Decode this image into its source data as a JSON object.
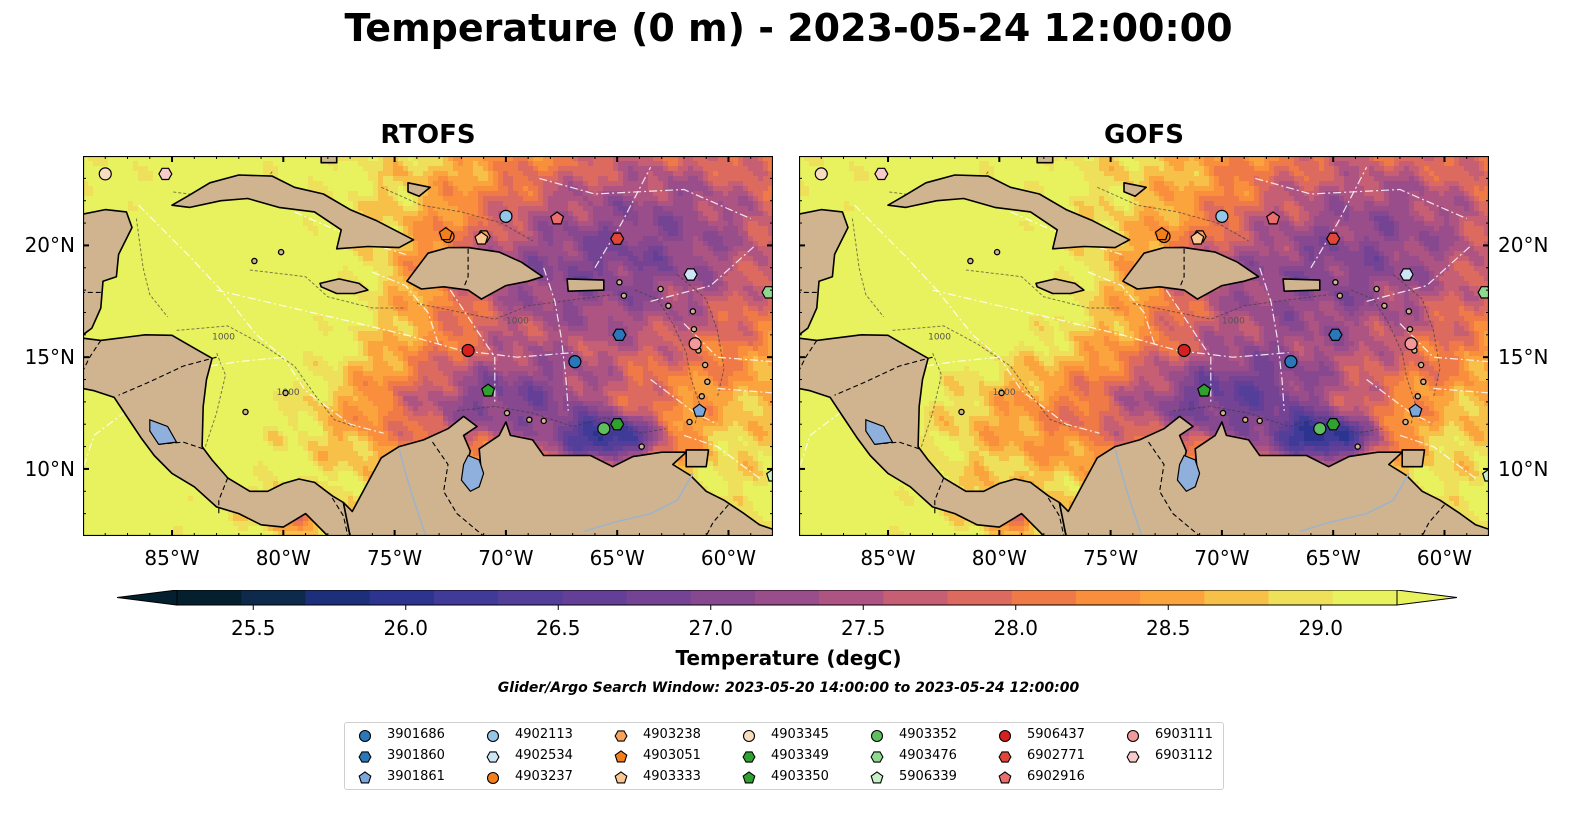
{
  "title": "Temperature (0 m) - 2023-05-24 12:00:00",
  "panels": [
    {
      "title": "RTOFS",
      "model": "rtofs"
    },
    {
      "title": "GOFS",
      "model": "gofs"
    }
  ],
  "colors": {
    "land": "#d0b48f",
    "lake": "#8fb0dc",
    "river": "#9fb3c8"
  },
  "chart_data": {
    "type": "heatmap",
    "lon_range": [
      -89,
      -58
    ],
    "lat_range": [
      7,
      24
    ],
    "x_ticks": [
      "85°W",
      "80°W",
      "75°W",
      "70°W",
      "65°W",
      "60°W"
    ],
    "x_tick_values": [
      -85,
      -80,
      -75,
      -70,
      -65,
      -60
    ],
    "y_ticks": [
      "20°N",
      "15°N",
      "10°N"
    ],
    "y_tick_values": [
      20,
      15,
      10
    ],
    "colorbar": {
      "label": "Temperature (degC)",
      "min": 25.25,
      "max": 29.25,
      "extend": "both",
      "tick_labels": [
        "25.5",
        "26.0",
        "26.5",
        "27.0",
        "27.5",
        "28.0",
        "28.5",
        "29.0"
      ],
      "tick_values": [
        25.5,
        26.0,
        26.5,
        27.0,
        27.5,
        28.0,
        28.5,
        29.0
      ],
      "colors": [
        "#04202f",
        "#0d2a4c",
        "#1c2f7a",
        "#2d3490",
        "#403a98",
        "#533e9a",
        "#643f97",
        "#754393",
        "#87488f",
        "#9a4d8b",
        "#ae5483",
        "#c65e74",
        "#dc6a5e",
        "#ef7a48",
        "#f98f3c",
        "#fba43d",
        "#f7c048",
        "#eee05a",
        "#e7f25e"
      ]
    },
    "isobath_labels": [
      "1000"
    ],
    "floats": [
      {
        "id": "3901686",
        "lon": -66.9,
        "lat": 14.8,
        "marker": "circle",
        "color": "#2a78b9"
      },
      {
        "id": "3901860",
        "lon": -64.9,
        "lat": 16.0,
        "marker": "hexagon",
        "color": "#2a78b9"
      },
      {
        "id": "3901861",
        "lon": -61.3,
        "lat": 12.6,
        "marker": "pentagon",
        "color": "#7aa7dc"
      },
      {
        "id": "4902113",
        "lon": -70.0,
        "lat": 21.3,
        "marker": "circle",
        "color": "#94c6e8"
      },
      {
        "id": "4902534",
        "lon": -61.7,
        "lat": 18.7,
        "marker": "hexagon",
        "color": "#cde6f5"
      },
      {
        "id": "4903237",
        "lon": -72.6,
        "lat": 20.4,
        "marker": "circle",
        "color": "#f27f1b"
      },
      {
        "id": "4903238",
        "lon": -71.0,
        "lat": 20.4,
        "marker": "hexagon",
        "color": "#f9a45c"
      },
      {
        "id": "4903051",
        "lon": -72.7,
        "lat": 20.5,
        "marker": "pentagon",
        "color": "#f27f1b"
      },
      {
        "id": "4903333",
        "lon": -71.1,
        "lat": 20.3,
        "marker": "pentagon",
        "color": "#fbc791"
      },
      {
        "id": "4903345",
        "lon": -88.0,
        "lat": 23.2,
        "marker": "circle",
        "color": "#f8dcc0"
      },
      {
        "id": "4903349",
        "lon": -65.0,
        "lat": 12.0,
        "marker": "hexagon",
        "color": "#2ea12e"
      },
      {
        "id": "4903350",
        "lon": -70.8,
        "lat": 13.5,
        "marker": "pentagon",
        "color": "#2ea12e"
      },
      {
        "id": "4903352",
        "lon": -65.6,
        "lat": 11.8,
        "marker": "circle",
        "color": "#5fbf5f"
      },
      {
        "id": "4903476",
        "lon": -58.2,
        "lat": 17.9,
        "marker": "hexagon",
        "color": "#8fd88f"
      },
      {
        "id": "5906339",
        "lon": -58.0,
        "lat": 9.7,
        "marker": "pentagon",
        "color": "#c6efc6"
      },
      {
        "id": "5906437",
        "lon": -71.7,
        "lat": 15.3,
        "marker": "circle",
        "color": "#d62020"
      },
      {
        "id": "6902771",
        "lon": -65.0,
        "lat": 20.3,
        "marker": "hexagon",
        "color": "#e0453a"
      },
      {
        "id": "6902916",
        "lon": -67.7,
        "lat": 21.2,
        "marker": "pentagon",
        "color": "#eb6e6e"
      },
      {
        "id": "6903111",
        "lon": -61.5,
        "lat": 15.6,
        "marker": "circle",
        "color": "#f29a9a"
      },
      {
        "id": "6903112",
        "lon": -85.3,
        "lat": 23.2,
        "marker": "hexagon",
        "color": "#f9caca"
      }
    ]
  },
  "search_window": "Glider/Argo Search Window: 2023-05-20 14:00:00 to 2023-05-24 12:00:00"
}
